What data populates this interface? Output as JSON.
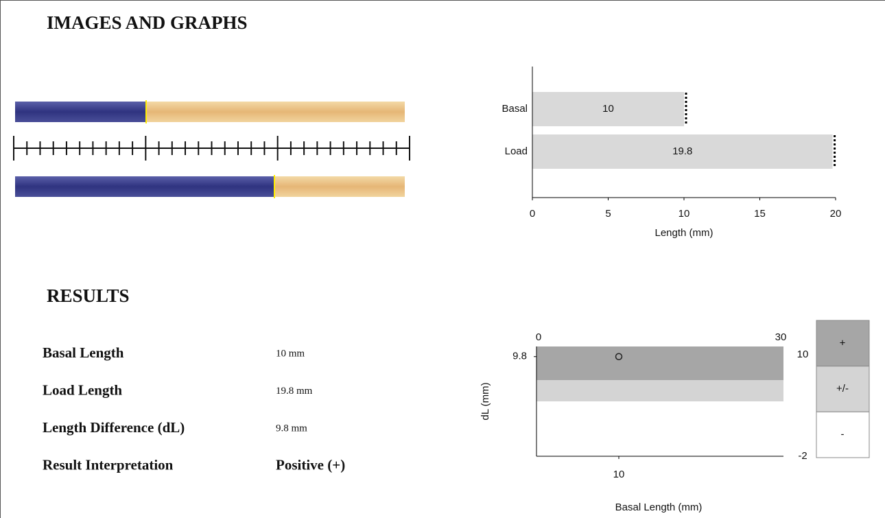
{
  "header": {
    "title": "IMAGES AND GRAPHS"
  },
  "chart_data": [
    {
      "type": "bar",
      "orientation": "horizontal",
      "categories": [
        "Basal",
        "Load"
      ],
      "values": [
        10,
        19.8
      ],
      "color": "#d9d9d9",
      "xlabel": "Length (mm)",
      "xlim": [
        0,
        20
      ],
      "xticks": [
        0,
        5,
        10,
        15,
        20
      ]
    },
    {
      "type": "scatter",
      "x": [
        10
      ],
      "values": [
        9.8
      ],
      "xlabel": "Basal Length (mm)",
      "ylabel": "dL (mm)",
      "xlim": [
        0,
        30
      ],
      "top_ticks": [
        0,
        30
      ],
      "xticks": [
        10
      ],
      "ylim": [
        -2,
        11
      ],
      "yticks": [
        9.8
      ],
      "zones": [
        {
          "label": "+",
          "from": 7,
          "to": 11,
          "color": "#a6a6a6"
        },
        {
          "label": "+/-",
          "from": 4.5,
          "to": 7,
          "color": "#d4d4d4"
        },
        {
          "label": "-",
          "from": -2,
          "to": 4.5,
          "color": "#ffffff"
        }
      ],
      "zone_ticks": [
        10,
        -2
      ]
    }
  ],
  "results": {
    "title": "RESULTS",
    "rows": [
      [
        "Basal Length",
        "10 mm"
      ],
      [
        "Load Length",
        "19.8 mm"
      ],
      [
        "Length Difference (dL)",
        "9.8 mm"
      ],
      [
        "Result Interpretation",
        "Positive (+)"
      ]
    ]
  }
}
